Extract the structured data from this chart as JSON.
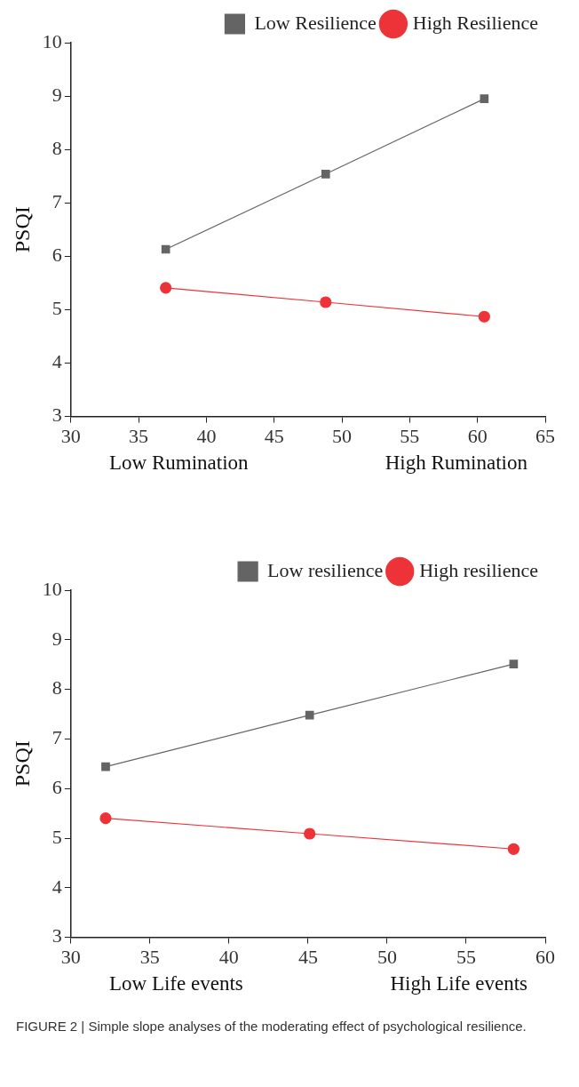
{
  "chart_data": [
    {
      "type": "line",
      "ylabel": "PSQI",
      "xlim": [
        30,
        65
      ],
      "xticks": [
        30,
        35,
        40,
        45,
        50,
        55,
        60,
        65
      ],
      "ylim": [
        3,
        10
      ],
      "yticks": [
        3,
        4,
        5,
        6,
        7,
        8,
        9,
        10
      ],
      "grid": false,
      "legend": "top right",
      "line_style": "solid",
      "series": [
        {
          "name": "Low Resilience",
          "color": "#646464",
          "marker": "square",
          "x": [
            37.0,
            48.8,
            60.5
          ],
          "values": [
            6.13,
            7.54,
            8.95
          ]
        },
        {
          "name": "High Resilience",
          "color": "#ee3338",
          "marker": "circle",
          "x": [
            37.0,
            48.8,
            60.5
          ],
          "values": [
            5.41,
            5.14,
            4.87
          ]
        }
      ],
      "annotations": [
        "Low Rumination",
        "High Rumination"
      ]
    },
    {
      "type": "line",
      "ylabel": "PSQI",
      "xlim": [
        30,
        60
      ],
      "xticks": [
        30,
        35,
        40,
        45,
        50,
        55,
        60
      ],
      "ylim": [
        3,
        10
      ],
      "yticks": [
        3,
        4,
        5,
        6,
        7,
        8,
        9,
        10
      ],
      "grid": false,
      "legend": "top right",
      "line_style": "solid",
      "series": [
        {
          "name": "Low resilience",
          "color": "#646464",
          "marker": "square",
          "x": [
            32.2,
            45.1,
            58.0
          ],
          "values": [
            6.44,
            7.48,
            8.51
          ]
        },
        {
          "name": "High resilience",
          "color": "#ee3338",
          "marker": "circle",
          "x": [
            32.2,
            45.1,
            58.0
          ],
          "values": [
            5.4,
            5.09,
            4.78
          ]
        }
      ],
      "annotations": [
        "Low Life events",
        "High Life events",
        "FIGURE 2 | Simple slope analyses of the moderating effect of psychological resilience."
      ]
    }
  ]
}
